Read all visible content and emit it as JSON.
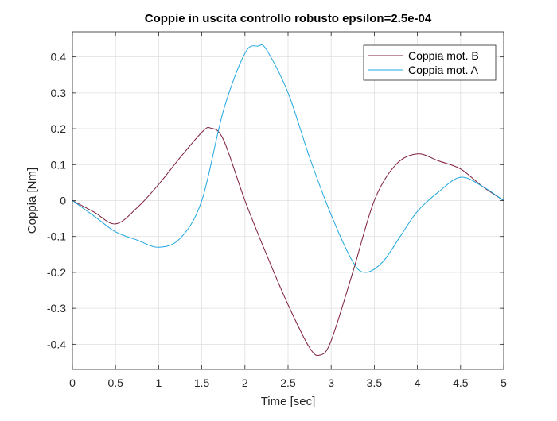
{
  "chart_data": {
    "type": "line",
    "title": "Coppie in uscita controllo robusto epsilon=2.5e-04",
    "xlabel": "Time [sec]",
    "ylabel": "Coppia [Nm]",
    "xlim": [
      0,
      5
    ],
    "ylim": [
      -0.47,
      0.47
    ],
    "xticks": [
      0,
      0.5,
      1,
      1.5,
      2,
      2.5,
      3,
      3.5,
      4,
      4.5,
      5
    ],
    "xtick_labels": [
      "0",
      "0.5",
      "1",
      "1.5",
      "2",
      "2.5",
      "3",
      "3.5",
      "4",
      "4.5",
      "5"
    ],
    "yticks": [
      -0.4,
      -0.3,
      -0.2,
      -0.1,
      0,
      0.1,
      0.2,
      0.3,
      0.4
    ],
    "ytick_labels": [
      "-0.4",
      "-0.3",
      "-0.2",
      "-0.1",
      "0",
      "0.1",
      "0.2",
      "0.3",
      "0.4"
    ],
    "grid": true,
    "legend_position": "top-right",
    "series": [
      {
        "name": "Coppia mot. B",
        "color": "#7e1e3c",
        "x": [
          0,
          0.25,
          0.5,
          0.75,
          1.0,
          1.25,
          1.5,
          1.6,
          1.75,
          2.0,
          2.25,
          2.5,
          2.75,
          2.875,
          3.0,
          3.25,
          3.5,
          3.75,
          4.0,
          4.25,
          4.5,
          4.75,
          5.0
        ],
        "y": [
          0,
          -0.032,
          -0.065,
          -0.02,
          0.045,
          0.12,
          0.19,
          0.202,
          0.17,
          0.0,
          -0.15,
          -0.29,
          -0.41,
          -0.43,
          -0.39,
          -0.2,
          0.0,
          0.1,
          0.13,
          0.11,
          0.088,
          0.04,
          0.0
        ]
      },
      {
        "name": "Coppia mot. A",
        "color": "#1fa7e0",
        "x": [
          0,
          0.25,
          0.5,
          0.75,
          1.0,
          1.25,
          1.5,
          1.75,
          2.0,
          2.15,
          2.25,
          2.5,
          2.75,
          3.0,
          3.25,
          3.4,
          3.6,
          3.8,
          4.0,
          4.25,
          4.5,
          4.75,
          5.0
        ],
        "y": [
          0,
          -0.043,
          -0.087,
          -0.11,
          -0.13,
          -0.105,
          0.0,
          0.25,
          0.41,
          0.43,
          0.42,
          0.3,
          0.12,
          -0.04,
          -0.17,
          -0.2,
          -0.17,
          -0.1,
          -0.03,
          0.025,
          0.065,
          0.04,
          0.0
        ]
      }
    ]
  }
}
